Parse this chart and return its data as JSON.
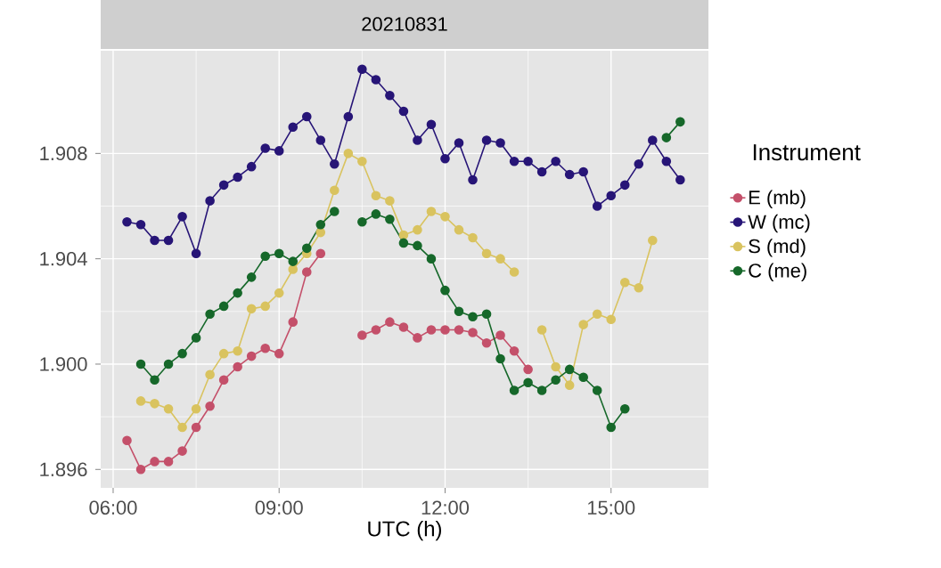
{
  "chart_data": {
    "type": "line",
    "title": "20210831",
    "xlabel": "UTC (h)",
    "legend_title": "Instrument",
    "xlim": [
      5.775,
      16.76
    ],
    "ylim": [
      1.8953,
      1.9119
    ],
    "xticks": [
      {
        "value": 6,
        "label": "06:00"
      },
      {
        "value": 9,
        "label": "09:00"
      },
      {
        "value": 12,
        "label": "12:00"
      },
      {
        "value": 15,
        "label": "15:00"
      }
    ],
    "yticks": [
      1.896,
      {
        "value": 1.9,
        "label": "1.900"
      },
      1.904,
      1.908
    ],
    "grid": true,
    "legend": "right",
    "marker": "circle",
    "line_style": "solid",
    "series": [
      {
        "name": "E (mb)",
        "color": "#c4506a",
        "x": [
          6.25,
          6.5,
          6.75,
          7.0,
          7.25,
          7.5,
          7.75,
          8.0,
          8.25,
          8.5,
          8.75,
          9.0,
          9.25,
          9.5,
          9.75,
          10.0,
          10.25,
          10.5,
          10.75,
          11.0,
          11.25,
          11.5,
          11.75,
          12.0,
          12.25,
          12.5,
          12.75,
          13.0,
          13.25,
          13.5
        ],
        "values": [
          1.8971,
          1.896,
          1.8963,
          1.8963,
          1.8967,
          1.8976,
          1.8984,
          1.8994,
          1.8999,
          1.9003,
          1.9006,
          1.9004,
          1.9016,
          1.9035,
          1.9042,
          null,
          null,
          1.9011,
          1.9013,
          1.9016,
          1.9014,
          1.901,
          1.9013,
          1.9013,
          1.9013,
          1.9012,
          1.9008,
          1.9011,
          1.9005,
          1.8998
        ]
      },
      {
        "name": "W (mc)",
        "color": "#271577",
        "x": [
          6.25,
          6.5,
          6.75,
          7.0,
          7.25,
          7.5,
          7.75,
          8.0,
          8.25,
          8.5,
          8.75,
          9.0,
          9.25,
          9.5,
          9.75,
          10.0,
          10.25,
          10.5,
          10.75,
          11.0,
          11.25,
          11.5,
          11.75,
          12.0,
          12.25,
          12.5,
          12.75,
          13.0,
          13.25,
          13.5,
          13.75,
          14.0,
          14.25,
          14.5,
          14.75,
          15.0,
          15.25,
          15.5,
          15.75,
          16.0,
          16.25
        ],
        "values": [
          1.9054,
          1.9053,
          1.9047,
          1.9047,
          1.9056,
          1.9042,
          1.9062,
          1.9068,
          1.9071,
          1.9075,
          1.9082,
          1.9081,
          1.909,
          1.9094,
          1.9085,
          1.9076,
          1.9094,
          1.9112,
          1.9108,
          1.9102,
          1.9096,
          1.9085,
          1.9091,
          1.9078,
          1.9084,
          1.907,
          1.9085,
          1.9084,
          1.9077,
          1.9077,
          1.9073,
          1.9077,
          1.9072,
          1.9073,
          1.906,
          1.9064,
          1.9068,
          1.9076,
          1.9085,
          1.9077,
          1.907
        ]
      },
      {
        "name": "S (md)",
        "color": "#d9c35f",
        "x": [
          6.5,
          6.75,
          7.0,
          7.25,
          7.5,
          7.75,
          8.0,
          8.25,
          8.5,
          8.75,
          9.0,
          9.25,
          9.5,
          9.75,
          10.0,
          10.25,
          10.5,
          10.75,
          11.0,
          11.25,
          11.5,
          11.75,
          12.0,
          12.25,
          12.5,
          12.75,
          13.0,
          13.25,
          13.5,
          13.75,
          14.0,
          14.25,
          14.5,
          14.75,
          15.0,
          15.25,
          15.5,
          15.75
        ],
        "values": [
          1.8986,
          1.8985,
          1.8983,
          1.8976,
          1.8983,
          1.8996,
          1.9004,
          1.9005,
          1.9021,
          1.9022,
          1.9027,
          1.9036,
          1.9042,
          1.905,
          1.9066,
          1.908,
          1.9077,
          1.9064,
          1.9062,
          1.9049,
          1.9051,
          1.9058,
          1.9056,
          1.9051,
          1.9048,
          1.9042,
          1.904,
          1.9035,
          null,
          1.9013,
          1.8999,
          1.8992,
          1.9015,
          1.9019,
          1.9017,
          1.9031,
          1.9029,
          1.9047
        ]
      },
      {
        "name": "C (me)",
        "color": "#16682a",
        "x": [
          6.5,
          6.75,
          7.0,
          7.25,
          7.5,
          7.75,
          8.0,
          8.25,
          8.5,
          8.75,
          9.0,
          9.25,
          9.5,
          9.75,
          10.0,
          10.25,
          10.5,
          10.75,
          11.0,
          11.25,
          11.5,
          11.75,
          12.0,
          12.25,
          12.5,
          12.75,
          13.0,
          13.25,
          13.5,
          13.75,
          14.0,
          14.25,
          14.5,
          14.75,
          15.0,
          15.25,
          15.5,
          15.75,
          16.0,
          16.25
        ],
        "values": [
          1.9,
          1.8994,
          1.9,
          1.9004,
          1.901,
          1.9019,
          1.9022,
          1.9027,
          1.9033,
          1.9041,
          1.9042,
          1.9039,
          1.9044,
          1.9053,
          1.9058,
          null,
          1.9054,
          1.9057,
          1.9055,
          1.9046,
          1.9045,
          1.904,
          1.9028,
          1.902,
          1.9018,
          1.9019,
          1.9002,
          1.899,
          1.8993,
          1.899,
          1.8994,
          1.8998,
          1.8995,
          1.899,
          1.8976,
          1.8983,
          null,
          null,
          1.9086,
          1.9092
        ]
      }
    ]
  }
}
